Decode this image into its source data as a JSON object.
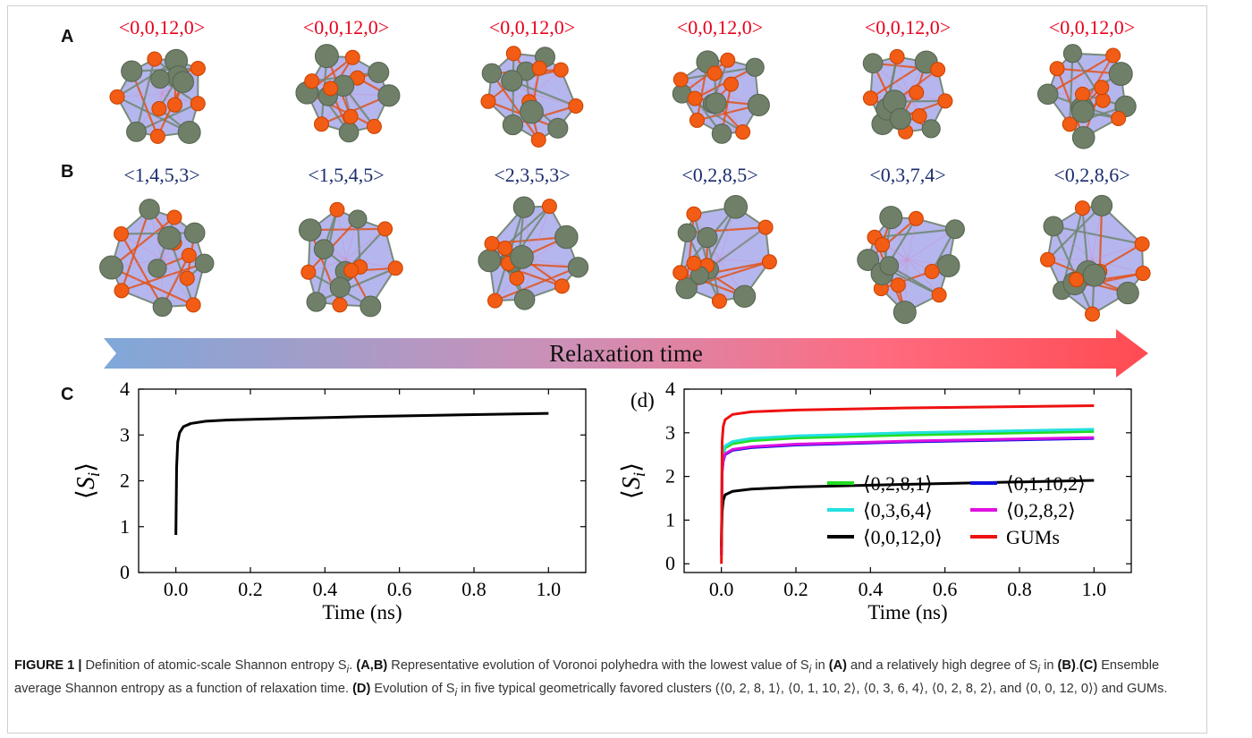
{
  "panels": {
    "A": {
      "label": "A",
      "polyhedra": [
        "<0,0,12,0>",
        "<0,0,12,0>",
        "<0,0,12,0>",
        "<0,0,12,0>",
        "<0,0,12,0>",
        "<0,0,12,0>"
      ],
      "label_color": "#e8001c"
    },
    "B": {
      "label": "B",
      "polyhedra": [
        "<1,4,5,3>",
        "<1,5,4,5>",
        "<2,3,5,3>",
        "<0,2,8,5>",
        "<0,3,7,4>",
        "<0,2,8,6>"
      ],
      "label_color": "#1a2b6d"
    },
    "arrow_label": "Relaxation time",
    "C": {
      "label": "C"
    },
    "D": {
      "label": "(d)"
    }
  },
  "chart_data": [
    {
      "type": "line",
      "panel": "C",
      "xlabel": "Time (ns)",
      "ylabel": "⟨S_i⟩",
      "xlim": [
        -0.1,
        1.1
      ],
      "ylim": [
        0,
        4
      ],
      "xticks": [
        "0.0",
        "0.2",
        "0.4",
        "0.6",
        "0.8",
        "1.0"
      ],
      "yticks": [
        "0",
        "1",
        "2",
        "3",
        "4"
      ],
      "legend": "none",
      "series": [
        {
          "color": "#000000",
          "x": [
            0,
            0.002,
            0.005,
            0.01,
            0.02,
            0.04,
            0.08,
            0.15,
            0.3,
            0.5,
            0.7,
            1.0
          ],
          "y": [
            0.82,
            2.3,
            2.85,
            3.05,
            3.18,
            3.25,
            3.3,
            3.33,
            3.36,
            3.4,
            3.43,
            3.47
          ]
        }
      ]
    },
    {
      "type": "line",
      "panel": "D",
      "xlabel": "Time (ns)",
      "ylabel": "⟨S_i⟩",
      "xlim": [
        -0.1,
        1.1
      ],
      "ylim": [
        -0.2,
        4
      ],
      "xticks": [
        "0.0",
        "0.2",
        "0.4",
        "0.6",
        "0.8",
        "1.0"
      ],
      "yticks": [
        "0",
        "1",
        "2",
        "3",
        "4"
      ],
      "legend": "bottom-right",
      "series": [
        {
          "name": "⟨0,2,8,1⟩",
          "color": "#22dd22",
          "x": [
            0,
            0.002,
            0.005,
            0.01,
            0.03,
            0.08,
            0.2,
            0.5,
            1.0
          ],
          "y": [
            0.2,
            2.2,
            2.5,
            2.65,
            2.75,
            2.82,
            2.88,
            2.95,
            3.03
          ]
        },
        {
          "name": "⟨0,1,10,2⟩",
          "color": "#1010dd",
          "x": [
            0,
            0.002,
            0.005,
            0.01,
            0.03,
            0.08,
            0.2,
            0.5,
            1.0
          ],
          "y": [
            0.2,
            2.1,
            2.35,
            2.5,
            2.6,
            2.66,
            2.72,
            2.79,
            2.87
          ]
        },
        {
          "name": "⟨0,3,6,4⟩",
          "color": "#22e0e0",
          "x": [
            0,
            0.002,
            0.005,
            0.01,
            0.03,
            0.08,
            0.2,
            0.5,
            1.0
          ],
          "y": [
            0.2,
            2.25,
            2.55,
            2.7,
            2.8,
            2.87,
            2.93,
            3.0,
            3.08
          ]
        },
        {
          "name": "⟨0,2,8,2⟩",
          "color": "#e010e0",
          "x": [
            0,
            0.002,
            0.005,
            0.01,
            0.03,
            0.08,
            0.2,
            0.5,
            1.0
          ],
          "y": [
            0.2,
            2.1,
            2.38,
            2.52,
            2.62,
            2.68,
            2.74,
            2.81,
            2.89
          ]
        },
        {
          "name": "⟨0,0,12,0⟩",
          "color": "#000000",
          "x": [
            0,
            0.002,
            0.005,
            0.01,
            0.03,
            0.08,
            0.2,
            0.5,
            1.0
          ],
          "y": [
            0.4,
            1.2,
            1.45,
            1.58,
            1.66,
            1.71,
            1.76,
            1.82,
            1.91
          ]
        },
        {
          "name": "GUMs",
          "color": "#ee1111",
          "x": [
            0,
            0.002,
            0.005,
            0.01,
            0.03,
            0.08,
            0.2,
            0.5,
            1.0
          ],
          "y": [
            0.0,
            2.8,
            3.15,
            3.3,
            3.42,
            3.48,
            3.52,
            3.57,
            3.62
          ]
        }
      ]
    }
  ],
  "caption": {
    "figure_label": "FIGURE 1 |",
    "parts": [
      " Definition of atomic-scale Shannon entropy S",
      ". ",
      "(A,B)",
      " Representative evolution of Voronoi polyhedra with the lowest value of S",
      " in ",
      "(A)",
      " and a relatively high degree of S",
      " in ",
      "(B)",
      ".",
      "(C)",
      " Ensemble average Shannon entropy as a function of relaxation time. ",
      "(D)",
      " Evolution of S",
      " in five typical geometrically favored clusters (⟨0, 2, 8, 1⟩, ⟨0, 1, 10, 2⟩, ⟨0, 3, 6, 4⟩, ⟨0, 2, 8, 2⟩, and ⟨0, 0, 12, 0⟩) and GUMs."
    ],
    "subscript": "i"
  }
}
